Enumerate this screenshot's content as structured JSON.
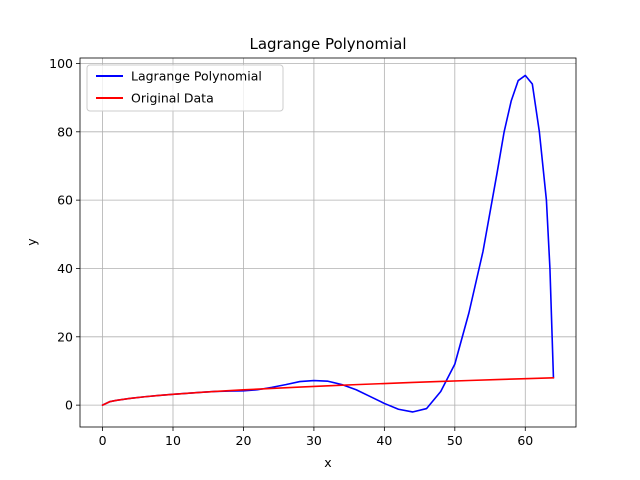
{
  "chart_data": {
    "type": "line",
    "title": "Lagrange Polynomial",
    "xlabel": "x",
    "ylabel": "y",
    "xlim": [
      -3.2,
      67.2
    ],
    "ylim": [
      -6.4,
      101.6
    ],
    "xticks": [
      0,
      10,
      20,
      30,
      40,
      50,
      60
    ],
    "yticks": [
      0,
      20,
      40,
      60,
      80,
      100
    ],
    "grid": true,
    "legend_position": "top-left",
    "series": [
      {
        "name": "Lagrange Polynomial",
        "color": "#0000ff",
        "x": [
          0,
          1,
          2,
          4,
          6,
          8,
          10,
          12,
          14,
          16,
          18,
          20,
          22,
          24,
          26,
          28,
          30,
          32,
          34,
          36,
          38,
          40,
          42,
          44,
          46,
          48,
          50,
          52,
          54,
          56,
          57,
          58,
          59,
          60,
          61,
          62,
          63,
          63.5,
          64
        ],
        "y": [
          0,
          1.0,
          1.41,
          2.0,
          2.45,
          2.83,
          3.16,
          3.46,
          3.74,
          4.0,
          4.1,
          4.2,
          4.5,
          5.2,
          6.0,
          6.9,
          7.2,
          7.0,
          6.0,
          4.5,
          2.5,
          0.5,
          -1.2,
          -2.0,
          -1.0,
          4.0,
          12.0,
          27.0,
          45.0,
          68.0,
          80.0,
          89.0,
          95.0,
          96.5,
          94.0,
          80.0,
          60.0,
          40.0,
          8.0
        ]
      },
      {
        "name": "Original Data",
        "color": "#ff0000",
        "x": [
          0,
          1,
          2,
          4,
          6,
          8,
          10,
          12,
          14,
          16,
          20,
          24,
          28,
          32,
          36,
          40,
          44,
          48,
          52,
          56,
          60,
          64
        ],
        "y": [
          0,
          1.0,
          1.41,
          2.0,
          2.45,
          2.83,
          3.16,
          3.46,
          3.74,
          4.0,
          4.47,
          4.9,
          5.29,
          5.66,
          6.0,
          6.32,
          6.63,
          6.93,
          7.21,
          7.48,
          7.75,
          8.0
        ]
      }
    ]
  }
}
